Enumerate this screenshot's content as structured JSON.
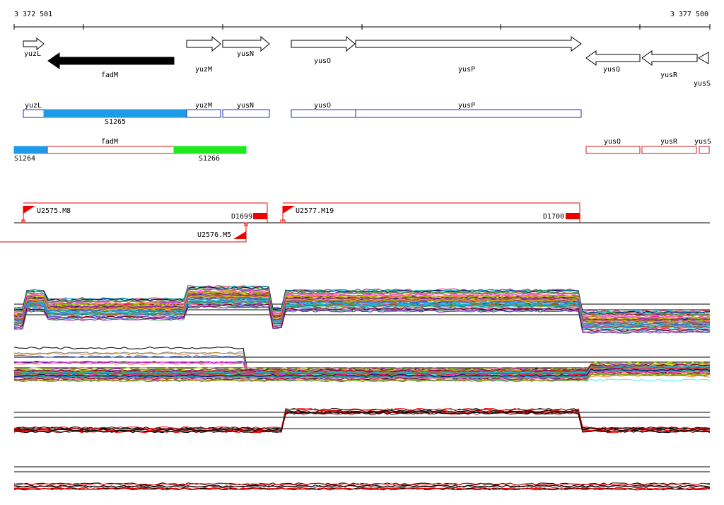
{
  "ruler": {
    "start": "3 372 501",
    "end": "3 377 500"
  },
  "genes": [
    "yuzL",
    "fadM",
    "yuzM",
    "yusN",
    "yusO",
    "yusP",
    "yusQ",
    "yusR",
    "yusS"
  ],
  "track2": [
    "yuzL",
    "S1265",
    "yuzM",
    "yusN",
    "yusO",
    "yusP"
  ],
  "track3": [
    "fadM",
    "S1264",
    "S1266",
    "yusQ",
    "yusR",
    "yusS"
  ],
  "features": [
    "U2575.M8",
    "D1699",
    "U2577.M19",
    "D1700",
    "U2576.M5"
  ]
}
